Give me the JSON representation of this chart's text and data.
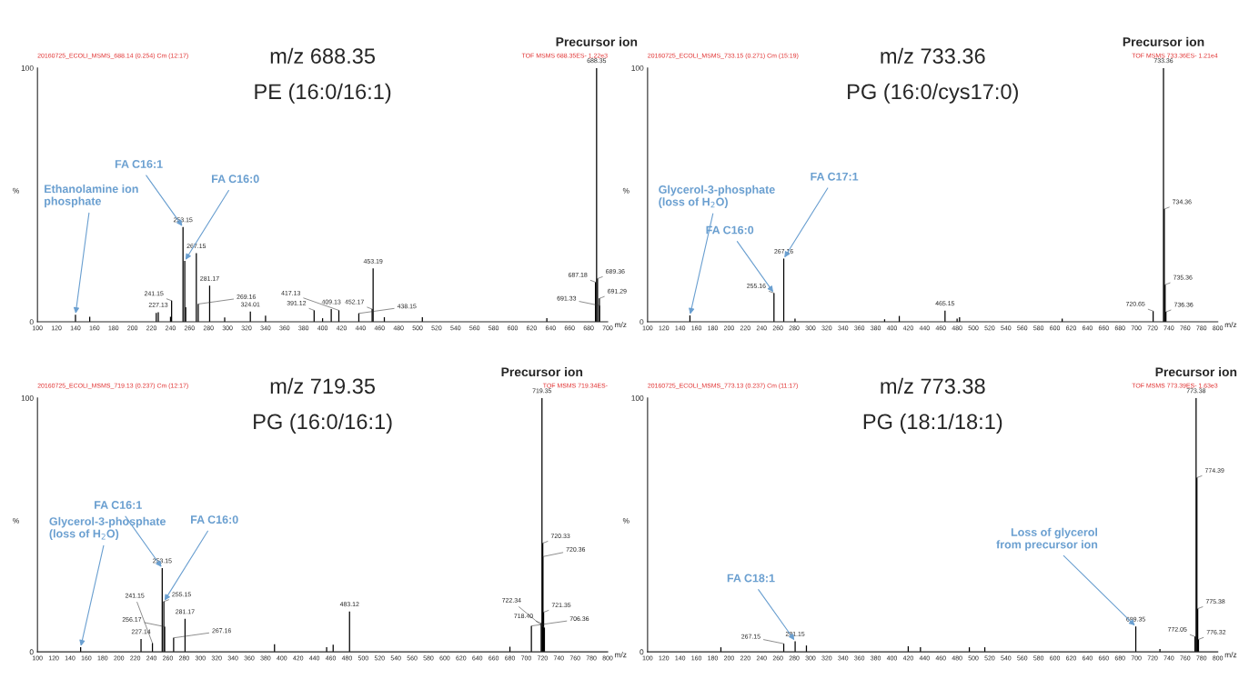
{
  "chart_data": [
    {
      "type": "bar",
      "title": "m/z 688.35",
      "subtitle": "PE (16:0/16:1)",
      "xlabel": "m/z",
      "ylabel": "%",
      "color": "#000000",
      "x": [
        140,
        155,
        225,
        227.13,
        240,
        241.15,
        253.15,
        255,
        256,
        267.15,
        269.16,
        281.17,
        297,
        324.01,
        340,
        391.12,
        400,
        409.13,
        417.13,
        438.15,
        452.17,
        453.19,
        465,
        505,
        636,
        687.18,
        688.35,
        689.36,
        691.29,
        691.33
      ],
      "values": [
        2.8,
        2,
        3.5,
        3.8,
        2,
        8.3,
        37.3,
        24,
        5.7,
        27,
        7,
        14.2,
        1.7,
        4,
        2.4,
        4.5,
        1.4,
        5,
        4.5,
        3.3,
        5,
        21,
        1.8,
        1.8,
        1.4,
        15.6,
        100,
        17,
        9.2,
        6.4
      ],
      "xlim": [
        100,
        700
      ],
      "xticks": [
        100,
        120,
        140,
        160,
        180,
        200,
        220,
        240,
        260,
        280,
        300,
        320,
        340,
        360,
        380,
        400,
        420,
        440,
        460,
        480,
        500,
        520,
        540,
        560,
        580,
        600,
        620,
        640,
        660,
        680,
        700
      ],
      "ylim": [
        0,
        100
      ],
      "yticks": [
        0,
        100
      ],
      "annotations": [
        "20160725_ECOLI_MSMS_688.14 (0.254) Cm (12:17)",
        "TOF MSMS 688.35ES- 1.22e3",
        "Precursor ion",
        {
          "text": "227.13",
          "x": 227.13,
          "y": 3.8
        },
        {
          "text": "241.15",
          "x": 241.15,
          "y": 8.3
        },
        {
          "text": "253.15",
          "x": 253.15,
          "y": 37.3
        },
        {
          "text": "267.15",
          "x": 267.15,
          "y": 27
        },
        {
          "text": "269.16",
          "x": 269.16,
          "y": 7
        },
        {
          "text": "281.17",
          "x": 281.17,
          "y": 14.2
        },
        {
          "text": "324.01",
          "x": 324.01,
          "y": 4
        },
        {
          "text": "391.12",
          "x": 391.12,
          "y": 4.5
        },
        {
          "text": "409.13",
          "x": 409.13,
          "y": 5
        },
        {
          "text": "417.13",
          "x": 417.13,
          "y": 4.5
        },
        {
          "text": "438.15",
          "x": 438.15,
          "y": 3.3
        },
        {
          "text": "452.17",
          "x": 452.17,
          "y": 5
        },
        {
          "text": "453.19",
          "x": 453.19,
          "y": 21
        },
        {
          "text": "687.18",
          "x": 687.18,
          "y": 15.6
        },
        {
          "text": "688.35",
          "x": 688.35,
          "y": 100
        },
        {
          "text": "689.36",
          "x": 689.36,
          "y": 17
        },
        {
          "text": "691.29",
          "x": 691.29,
          "y": 9.2
        },
        {
          "text": "691.33",
          "x": 691.33,
          "y": 6.4
        },
        {
          "text": "Ethanolamine ion\nphosphate",
          "x": 140,
          "y": 2.8
        },
        {
          "text": "FA C16:1",
          "x": 253.15,
          "y": 37.3
        },
        {
          "text": "FA C16:0",
          "x": 255,
          "y": 24
        }
      ]
    },
    {
      "type": "bar",
      "title": "m/z 733.36",
      "subtitle": "PG (16:0/cys17:0)",
      "xlabel": "m/z",
      "ylabel": "%",
      "color": "#000000",
      "x": [
        152,
        255.16,
        267.16,
        281,
        391,
        409,
        465.15,
        480,
        483,
        609,
        720.65,
        733.36,
        734.36,
        735.36,
        736.36
      ],
      "values": [
        2.5,
        11.3,
        24.9,
        1.3,
        1,
        2.3,
        4.4,
        1.3,
        1.8,
        1.3,
        4.2,
        100,
        44.4,
        14.6,
        3.9
      ],
      "xlim": [
        100,
        800
      ],
      "xticks": [
        100,
        120,
        140,
        160,
        180,
        200,
        220,
        240,
        260,
        280,
        300,
        320,
        340,
        360,
        380,
        400,
        420,
        440,
        460,
        480,
        500,
        520,
        540,
        560,
        580,
        600,
        620,
        640,
        660,
        680,
        700,
        720,
        740,
        760,
        780,
        800
      ],
      "ylim": [
        0,
        100
      ],
      "yticks": [
        0,
        100
      ],
      "annotations": [
        "20160725_ECOLI_MSMS_733.15 (0.271) Cm (15:19)",
        "TOF MSMS 733.36ES- 1.21e4",
        "Precursor ion",
        {
          "text": "255.16",
          "x": 255.16,
          "y": 11.3
        },
        {
          "text": "267.16",
          "x": 267.16,
          "y": 24.9
        },
        {
          "text": "465.15",
          "x": 465.15,
          "y": 4.4
        },
        {
          "text": "720.65",
          "x": 720.65,
          "y": 4.2
        },
        {
          "text": "733.36",
          "x": 733.36,
          "y": 100
        },
        {
          "text": "734.36",
          "x": 734.36,
          "y": 44.4
        },
        {
          "text": "735.36",
          "x": 735.36,
          "y": 14.6
        },
        {
          "text": "736.36",
          "x": 736.36,
          "y": 3.9
        },
        {
          "text": "Glycerol-3-phosphate\n(loss of H$_{2}$O)",
          "x": 152,
          "y": 2.5
        },
        {
          "text": "FA C16:0",
          "x": 255.16,
          "y": 11.3
        },
        {
          "text": "FA C17:1",
          "x": 267.16,
          "y": 24.9
        }
      ]
    },
    {
      "type": "bar",
      "title": "m/z 719.35",
      "subtitle": "PG (16:0/16:1)",
      "xlabel": "m/z",
      "ylabel": "%",
      "color": "#000000",
      "x": [
        153,
        227.14,
        241.15,
        253.15,
        255.15,
        256.17,
        267.16,
        281.17,
        391,
        455,
        463,
        483.12,
        680,
        706.36,
        718.4,
        719.35,
        720.33,
        720.36,
        721.35,
        722.34
      ],
      "values": [
        1.8,
        5.1,
        3.4,
        33,
        19.8,
        9.9,
        5.5,
        13,
        3,
        1.8,
        2.8,
        15.9,
        2,
        10.2,
        11.3,
        100,
        42.8,
        37.5,
        15.6,
        9.5
      ],
      "xlim": [
        100,
        800
      ],
      "xticks": [
        100,
        120,
        140,
        160,
        180,
        200,
        220,
        240,
        260,
        280,
        300,
        320,
        340,
        360,
        380,
        400,
        420,
        440,
        460,
        480,
        500,
        520,
        540,
        560,
        580,
        600,
        620,
        640,
        660,
        680,
        700,
        720,
        740,
        760,
        780,
        800
      ],
      "ylim": [
        0,
        100
      ],
      "yticks": [
        0,
        100
      ],
      "annotations": [
        "20160725_ECOLI_MSMS_719.13 (0.237) Cm (12:17)",
        "TOF MSMS 719.34ES-",
        "Precursor ion",
        {
          "text": "227.14",
          "x": 227.14,
          "y": 5.1
        },
        {
          "text": "241.15",
          "x": 241.15,
          "y": 3.4
        },
        {
          "text": "253.15",
          "x": 253.15,
          "y": 33
        },
        {
          "text": "255.15",
          "x": 255.15,
          "y": 19.8
        },
        {
          "text": "256.17",
          "x": 256.17,
          "y": 9.9
        },
        {
          "text": "267.16",
          "x": 267.16,
          "y": 5.5
        },
        {
          "text": "281.17",
          "x": 281.17,
          "y": 13
        },
        {
          "text": "483.12",
          "x": 483.12,
          "y": 15.9
        },
        {
          "text": "706.36",
          "x": 706.36,
          "y": 10.2
        },
        {
          "text": "718.40",
          "x": 718.4,
          "y": 11.3
        },
        {
          "text": "719.35",
          "x": 719.35,
          "y": 100
        },
        {
          "text": "720.33",
          "x": 720.33,
          "y": 42.8
        },
        {
          "text": "720.36",
          "x": 720.36,
          "y": 37.5
        },
        {
          "text": "721.35",
          "x": 721.35,
          "y": 15.6
        },
        {
          "text": "722.34",
          "x": 722.34,
          "y": 9.5
        },
        {
          "text": "Glycerol-3-phosphate\n(loss of H$_{2}$O)",
          "x": 153,
          "y": 1.8
        },
        {
          "text": "FA C16:1",
          "x": 253.15,
          "y": 33
        },
        {
          "text": "FA C16:0",
          "x": 255.15,
          "y": 19.8
        }
      ]
    },
    {
      "type": "bar",
      "title": "m/z 773.38",
      "subtitle": "PG (18:1/18:1)",
      "xlabel": "m/z",
      "ylabel": "%",
      "color": "#000000",
      "x": [
        190,
        267.15,
        281.15,
        295,
        420,
        435,
        495,
        514,
        699.35,
        729,
        772.05,
        773.38,
        774.39,
        775.38,
        776.32
      ],
      "values": [
        1.8,
        3.2,
        4.2,
        2.5,
        2.2,
        1.8,
        1.8,
        1.8,
        10,
        1.1,
        6,
        100,
        68.6,
        17,
        4.9
      ],
      "xlim": [
        100,
        800
      ],
      "xticks": [
        100,
        120,
        140,
        160,
        180,
        200,
        220,
        240,
        260,
        280,
        300,
        320,
        340,
        360,
        380,
        400,
        420,
        440,
        460,
        480,
        500,
        520,
        540,
        560,
        580,
        600,
        620,
        640,
        660,
        680,
        700,
        720,
        740,
        760,
        780,
        800
      ],
      "ylim": [
        0,
        100
      ],
      "yticks": [
        0,
        100
      ],
      "annotations": [
        "20160725_ECOLI_MSMS_773.13 (0.237) Cm (11:17)",
        "TOF MSMS 773.39ES- 1.63e3",
        "Precursor ion",
        {
          "text": "267.15",
          "x": 267.15,
          "y": 3.2
        },
        {
          "text": "281.15",
          "x": 281.15,
          "y": 4.2
        },
        {
          "text": "699.35",
          "x": 699.35,
          "y": 10
        },
        {
          "text": "772.05",
          "x": 772.05,
          "y": 6
        },
        {
          "text": "773.38",
          "x": 773.38,
          "y": 100
        },
        {
          "text": "774.39",
          "x": 774.39,
          "y": 68.6
        },
        {
          "text": "775.38",
          "x": 775.38,
          "y": 17
        },
        {
          "text": "776.32",
          "x": 776.32,
          "y": 4.9
        },
        {
          "text": "FA C18:1",
          "x": 281.15,
          "y": 4.2
        },
        {
          "text": "Loss of glycerol\nfrom precursor ion",
          "x": 699.35,
          "y": 10
        }
      ]
    }
  ]
}
